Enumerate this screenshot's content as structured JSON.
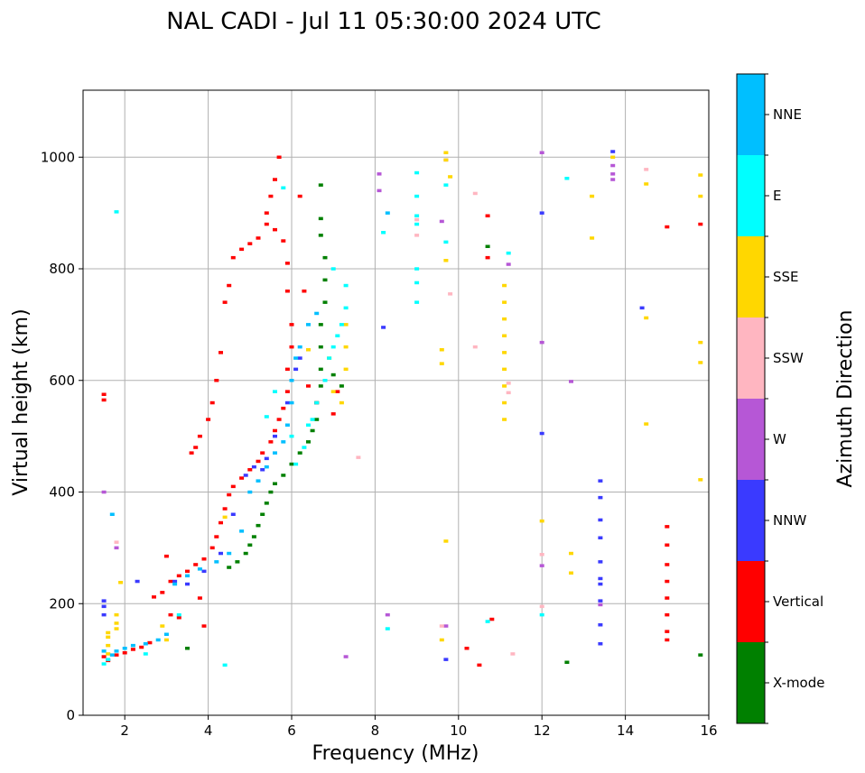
{
  "chart_data": {
    "type": "scatter",
    "title": "NAL CADI - Jul 11 05:30:00 2024 UTC",
    "xlabel": "Frequency (MHz)",
    "ylabel": "Virtual height (km)",
    "xlim": [
      1,
      16
    ],
    "ylim": [
      0,
      1120
    ],
    "xticks": [
      2,
      4,
      6,
      8,
      10,
      12,
      14,
      16
    ],
    "yticks": [
      0,
      200,
      400,
      600,
      800,
      1000
    ],
    "grid": true,
    "colorbar": {
      "label": "Azimuth Direction",
      "categories": [
        {
          "name": "X-mode",
          "color": "#008000"
        },
        {
          "name": "Vertical",
          "color": "#ff0000"
        },
        {
          "name": "NNW",
          "color": "#3a3aff"
        },
        {
          "name": "W",
          "color": "#b657d6"
        },
        {
          "name": "SSW",
          "color": "#ffb6c1"
        },
        {
          "name": "SSE",
          "color": "#ffd700"
        },
        {
          "name": "E",
          "color": "#00ffff"
        },
        {
          "name": "NNE",
          "color": "#00bfff"
        }
      ]
    },
    "series": [
      {
        "name": "X-mode",
        "color": "#008000",
        "points": [
          [
            3.5,
            120
          ],
          [
            4.5,
            265
          ],
          [
            4.7,
            275
          ],
          [
            4.9,
            290
          ],
          [
            5.0,
            305
          ],
          [
            5.1,
            320
          ],
          [
            5.2,
            340
          ],
          [
            5.3,
            360
          ],
          [
            5.4,
            380
          ],
          [
            5.5,
            400
          ],
          [
            5.6,
            415
          ],
          [
            5.8,
            430
          ],
          [
            6.0,
            450
          ],
          [
            6.2,
            470
          ],
          [
            6.4,
            490
          ],
          [
            6.5,
            510
          ],
          [
            6.6,
            530
          ],
          [
            6.6,
            560
          ],
          [
            6.7,
            590
          ],
          [
            6.7,
            620
          ],
          [
            6.7,
            660
          ],
          [
            6.7,
            700
          ],
          [
            6.8,
            740
          ],
          [
            6.8,
            780
          ],
          [
            6.8,
            820
          ],
          [
            6.7,
            860
          ],
          [
            6.7,
            890
          ],
          [
            6.7,
            950
          ],
          [
            10.7,
            840
          ],
          [
            12.6,
            95
          ],
          [
            15.8,
            108
          ],
          [
            7.2,
            590
          ],
          [
            7.0,
            610
          ]
        ]
      },
      {
        "name": "Vertical",
        "color": "#ff0000",
        "points": [
          [
            1.5,
            575
          ],
          [
            1.5,
            565
          ],
          [
            1.5,
            105
          ],
          [
            1.6,
            98
          ],
          [
            1.8,
            108
          ],
          [
            2.0,
            112
          ],
          [
            2.2,
            118
          ],
          [
            2.4,
            122
          ],
          [
            2.6,
            130
          ],
          [
            2.7,
            212
          ],
          [
            2.9,
            220
          ],
          [
            3.1,
            240
          ],
          [
            3.3,
            250
          ],
          [
            3.5,
            258
          ],
          [
            3.7,
            270
          ],
          [
            3.9,
            280
          ],
          [
            4.1,
            300
          ],
          [
            4.2,
            320
          ],
          [
            4.3,
            345
          ],
          [
            4.4,
            370
          ],
          [
            4.5,
            395
          ],
          [
            4.6,
            410
          ],
          [
            4.8,
            425
          ],
          [
            5.0,
            440
          ],
          [
            5.2,
            455
          ],
          [
            5.3,
            470
          ],
          [
            5.5,
            490
          ],
          [
            5.6,
            510
          ],
          [
            5.7,
            530
          ],
          [
            5.8,
            550
          ],
          [
            5.9,
            580
          ],
          [
            5.9,
            620
          ],
          [
            6.0,
            660
          ],
          [
            6.0,
            700
          ],
          [
            5.9,
            760
          ],
          [
            5.9,
            810
          ],
          [
            5.8,
            850
          ],
          [
            5.6,
            870
          ],
          [
            5.4,
            880
          ],
          [
            5.2,
            855
          ],
          [
            5.0,
            845
          ],
          [
            4.8,
            835
          ],
          [
            4.6,
            820
          ],
          [
            4.5,
            770
          ],
          [
            4.4,
            740
          ],
          [
            4.3,
            650
          ],
          [
            4.2,
            600
          ],
          [
            4.1,
            560
          ],
          [
            4.0,
            530
          ],
          [
            3.8,
            500
          ],
          [
            3.7,
            480
          ],
          [
            3.6,
            470
          ],
          [
            5.7,
            1000
          ],
          [
            5.6,
            960
          ],
          [
            5.5,
            930
          ],
          [
            5.4,
            900
          ],
          [
            6.2,
            930
          ],
          [
            6.3,
            760
          ],
          [
            6.4,
            590
          ],
          [
            6.6,
            560
          ],
          [
            7.1,
            580
          ],
          [
            7.0,
            540
          ],
          [
            3.0,
            285
          ],
          [
            3.1,
            180
          ],
          [
            3.3,
            175
          ],
          [
            3.8,
            210
          ],
          [
            3.9,
            160
          ],
          [
            10.7,
            820
          ],
          [
            10.7,
            895
          ],
          [
            10.5,
            90
          ],
          [
            10.2,
            120
          ],
          [
            10.8,
            172
          ],
          [
            15.0,
            875
          ],
          [
            15.8,
            880
          ],
          [
            15.0,
            338
          ],
          [
            15.0,
            305
          ],
          [
            15.0,
            270
          ],
          [
            15.0,
            240
          ],
          [
            15.0,
            210
          ],
          [
            15.0,
            180
          ],
          [
            15.0,
            150
          ],
          [
            15.0,
            135
          ]
        ]
      },
      {
        "name": "NNW",
        "color": "#3a3aff",
        "points": [
          [
            1.5,
            205
          ],
          [
            1.5,
            195
          ],
          [
            1.5,
            180
          ],
          [
            2.3,
            240
          ],
          [
            3.2,
            240
          ],
          [
            3.5,
            235
          ],
          [
            3.9,
            258
          ],
          [
            4.3,
            290
          ],
          [
            4.6,
            360
          ],
          [
            4.9,
            430
          ],
          [
            5.1,
            445
          ],
          [
            5.3,
            440
          ],
          [
            5.4,
            460
          ],
          [
            5.6,
            500
          ],
          [
            5.9,
            560
          ],
          [
            6.1,
            620
          ],
          [
            6.2,
            640
          ],
          [
            8.2,
            695
          ],
          [
            9.7,
            100
          ],
          [
            12.0,
            505
          ],
          [
            12.0,
            900
          ],
          [
            13.4,
            420
          ],
          [
            13.4,
            390
          ],
          [
            13.4,
            350
          ],
          [
            13.4,
            318
          ],
          [
            13.4,
            275
          ],
          [
            13.4,
            245
          ],
          [
            13.4,
            235
          ],
          [
            13.4,
            205
          ],
          [
            13.4,
            162
          ],
          [
            13.4,
            128
          ],
          [
            13.7,
            1010
          ],
          [
            14.4,
            730
          ]
        ]
      },
      {
        "name": "W",
        "color": "#b657d6",
        "points": [
          [
            1.5,
            400
          ],
          [
            1.8,
            300
          ],
          [
            7.3,
            105
          ],
          [
            8.1,
            970
          ],
          [
            8.1,
            940
          ],
          [
            8.3,
            180
          ],
          [
            9.6,
            885
          ],
          [
            9.7,
            995
          ],
          [
            9.7,
            160
          ],
          [
            11.2,
            808
          ],
          [
            12.0,
            1008
          ],
          [
            12.0,
            668
          ],
          [
            12.0,
            268
          ],
          [
            12.7,
            598
          ],
          [
            13.4,
            198
          ],
          [
            13.7,
            985
          ],
          [
            13.7,
            970
          ],
          [
            13.7,
            960
          ]
        ]
      },
      {
        "name": "SSW",
        "color": "#ffb6c1",
        "points": [
          [
            1.8,
            310
          ],
          [
            7.6,
            462
          ],
          [
            9.0,
            888
          ],
          [
            9.0,
            860
          ],
          [
            9.8,
            755
          ],
          [
            10.4,
            935
          ],
          [
            10.4,
            660
          ],
          [
            11.2,
            595
          ],
          [
            11.2,
            578
          ],
          [
            11.3,
            110
          ],
          [
            12.0,
            288
          ],
          [
            12.0,
            195
          ],
          [
            14.5,
            978
          ],
          [
            9.6,
            160
          ]
        ]
      },
      {
        "name": "SSE",
        "color": "#ffd700",
        "points": [
          [
            1.6,
            148
          ],
          [
            1.6,
            140
          ],
          [
            1.6,
            125
          ],
          [
            1.6,
            110
          ],
          [
            1.9,
            238
          ],
          [
            1.8,
            180
          ],
          [
            1.8,
            165
          ],
          [
            1.8,
            155
          ],
          [
            2.9,
            160
          ],
          [
            3.0,
            135
          ],
          [
            4.4,
            355
          ],
          [
            6.4,
            655
          ],
          [
            6.9,
            640
          ],
          [
            7.0,
            580
          ],
          [
            7.2,
            560
          ],
          [
            7.3,
            620
          ],
          [
            7.3,
            660
          ],
          [
            7.3,
            700
          ],
          [
            9.6,
            655
          ],
          [
            9.6,
            630
          ],
          [
            9.6,
            135
          ],
          [
            9.7,
            312
          ],
          [
            9.7,
            1008
          ],
          [
            9.7,
            995
          ],
          [
            9.8,
            965
          ],
          [
            11.1,
            770
          ],
          [
            11.1,
            740
          ],
          [
            11.1,
            710
          ],
          [
            11.1,
            680
          ],
          [
            11.1,
            650
          ],
          [
            11.1,
            620
          ],
          [
            11.1,
            590
          ],
          [
            11.1,
            560
          ],
          [
            11.1,
            530
          ],
          [
            12.0,
            348
          ],
          [
            12.7,
            290
          ],
          [
            12.7,
            255
          ],
          [
            13.2,
            930
          ],
          [
            13.2,
            855
          ],
          [
            13.7,
            1000
          ],
          [
            14.5,
            952
          ],
          [
            14.5,
            712
          ],
          [
            14.5,
            522
          ],
          [
            15.8,
            968
          ],
          [
            15.8,
            930
          ],
          [
            15.8,
            668
          ],
          [
            15.8,
            632
          ],
          [
            15.8,
            422
          ],
          [
            9.7,
            815
          ]
        ]
      },
      {
        "name": "E",
        "color": "#00ffff",
        "points": [
          [
            1.5,
            92
          ],
          [
            1.6,
            100
          ],
          [
            1.8,
            902
          ],
          [
            2.5,
            110
          ],
          [
            3.3,
            180
          ],
          [
            4.4,
            90
          ],
          [
            5.4,
            535
          ],
          [
            5.6,
            580
          ],
          [
            5.8,
            945
          ],
          [
            6.0,
            500
          ],
          [
            6.1,
            450
          ],
          [
            6.3,
            480
          ],
          [
            6.4,
            520
          ],
          [
            6.5,
            530
          ],
          [
            6.6,
            560
          ],
          [
            6.8,
            600
          ],
          [
            6.9,
            640
          ],
          [
            7.0,
            660
          ],
          [
            7.1,
            680
          ],
          [
            7.2,
            700
          ],
          [
            7.3,
            730
          ],
          [
            7.3,
            770
          ],
          [
            7.0,
            800
          ],
          [
            8.2,
            865
          ],
          [
            8.3,
            155
          ],
          [
            9.0,
            972
          ],
          [
            9.0,
            930
          ],
          [
            9.0,
            895
          ],
          [
            9.0,
            880
          ],
          [
            9.0,
            800
          ],
          [
            9.0,
            775
          ],
          [
            9.0,
            740
          ],
          [
            9.7,
            848
          ],
          [
            9.7,
            950
          ],
          [
            10.7,
            168
          ],
          [
            11.2,
            828
          ],
          [
            12.0,
            180
          ],
          [
            12.6,
            962
          ]
        ]
      },
      {
        "name": "NNE",
        "color": "#00bfff",
        "points": [
          [
            1.5,
            115
          ],
          [
            1.7,
            108
          ],
          [
            1.8,
            115
          ],
          [
            2.0,
            120
          ],
          [
            2.2,
            125
          ],
          [
            2.5,
            128
          ],
          [
            2.8,
            135
          ],
          [
            3.0,
            145
          ],
          [
            3.2,
            235
          ],
          [
            3.5,
            250
          ],
          [
            3.8,
            262
          ],
          [
            4.2,
            275
          ],
          [
            4.5,
            290
          ],
          [
            4.8,
            330
          ],
          [
            5.0,
            400
          ],
          [
            5.2,
            420
          ],
          [
            5.4,
            445
          ],
          [
            5.6,
            470
          ],
          [
            5.8,
            490
          ],
          [
            5.9,
            520
          ],
          [
            6.0,
            560
          ],
          [
            6.0,
            600
          ],
          [
            6.1,
            640
          ],
          [
            6.2,
            660
          ],
          [
            6.4,
            700
          ],
          [
            6.6,
            720
          ],
          [
            8.3,
            900
          ],
          [
            1.7,
            360
          ]
        ]
      }
    ]
  }
}
